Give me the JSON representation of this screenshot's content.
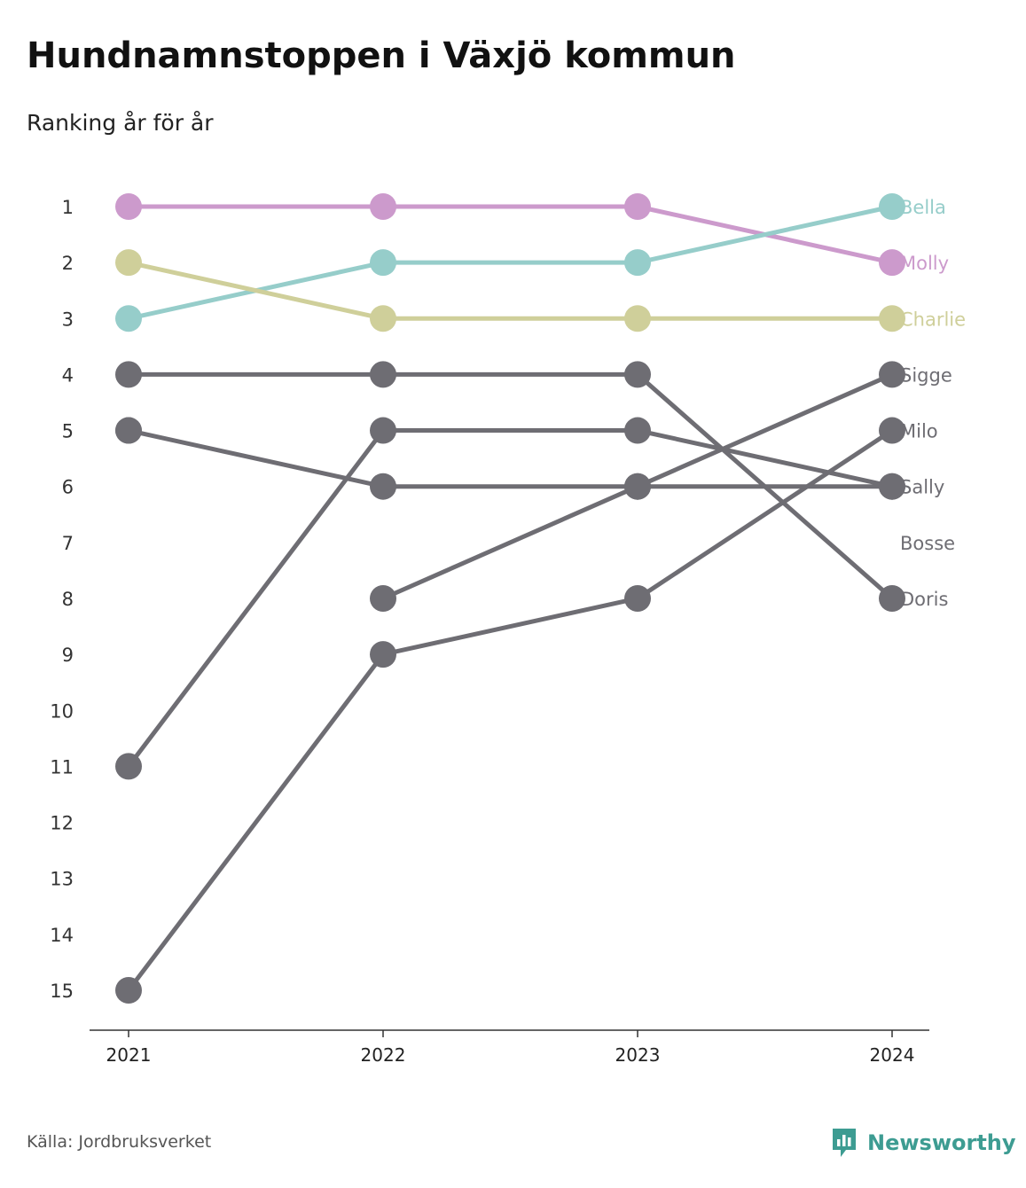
{
  "header": {
    "title": "Hundnamnstoppen i Växjö kommun",
    "subtitle": "Ranking år för år"
  },
  "footer": {
    "source": "Källa: Jordbruksverket",
    "brand": "Newsworthy",
    "brand_icon": "bar-chart-speech-bubble-icon",
    "brand_color": "#3d9c92"
  },
  "chart_data": {
    "type": "line",
    "x": [
      "2021",
      "2022",
      "2023",
      "2024"
    ],
    "y_ticks": [
      "1",
      "2",
      "3",
      "4",
      "5",
      "6",
      "7",
      "8",
      "9",
      "10",
      "11",
      "12",
      "13",
      "14",
      "15"
    ],
    "ylim": [
      1,
      15
    ],
    "y_reversed": true,
    "grid": false,
    "colors": {
      "Molly": "#cc9acc",
      "Bella": "#96cdca",
      "Charlie": "#cfcf9a",
      "default": "#6e6d73"
    },
    "series": [
      {
        "name": "Molly",
        "values": [
          1,
          1,
          1,
          2
        ]
      },
      {
        "name": "Bella",
        "values": [
          3,
          2,
          2,
          1
        ]
      },
      {
        "name": "Charlie",
        "values": [
          2,
          3,
          3,
          3
        ]
      },
      {
        "name": "Sigge",
        "values": [
          null,
          8,
          6,
          4
        ]
      },
      {
        "name": "Milo",
        "values": [
          15,
          9,
          8,
          5
        ]
      },
      {
        "name": "Sally",
        "values": [
          5,
          6,
          6,
          6
        ]
      },
      {
        "name": "Bosse",
        "values": [
          11,
          5,
          5,
          6
        ]
      },
      {
        "name": "Doris",
        "values": [
          4,
          4,
          4,
          8
        ]
      }
    ],
    "extra_points": [
      {
        "x": "2021",
        "y": 5
      }
    ],
    "end_labels": [
      {
        "text": "Bella",
        "rank": 1,
        "color": "#96cdca"
      },
      {
        "text": "Molly",
        "rank": 2,
        "color": "#cc9acc"
      },
      {
        "text": "Charlie",
        "rank": 3,
        "color": "#cfcf9a"
      },
      {
        "text": "Sigge",
        "rank": 4,
        "color": "#6e6d73"
      },
      {
        "text": "Milo",
        "rank": 5,
        "color": "#6e6d73"
      },
      {
        "text": "Sally",
        "rank": 6,
        "color": "#6e6d73"
      },
      {
        "text": "Bosse",
        "rank": 7,
        "color": "#6e6d73"
      },
      {
        "text": "Doris",
        "rank": 8,
        "color": "#6e6d73"
      }
    ]
  }
}
